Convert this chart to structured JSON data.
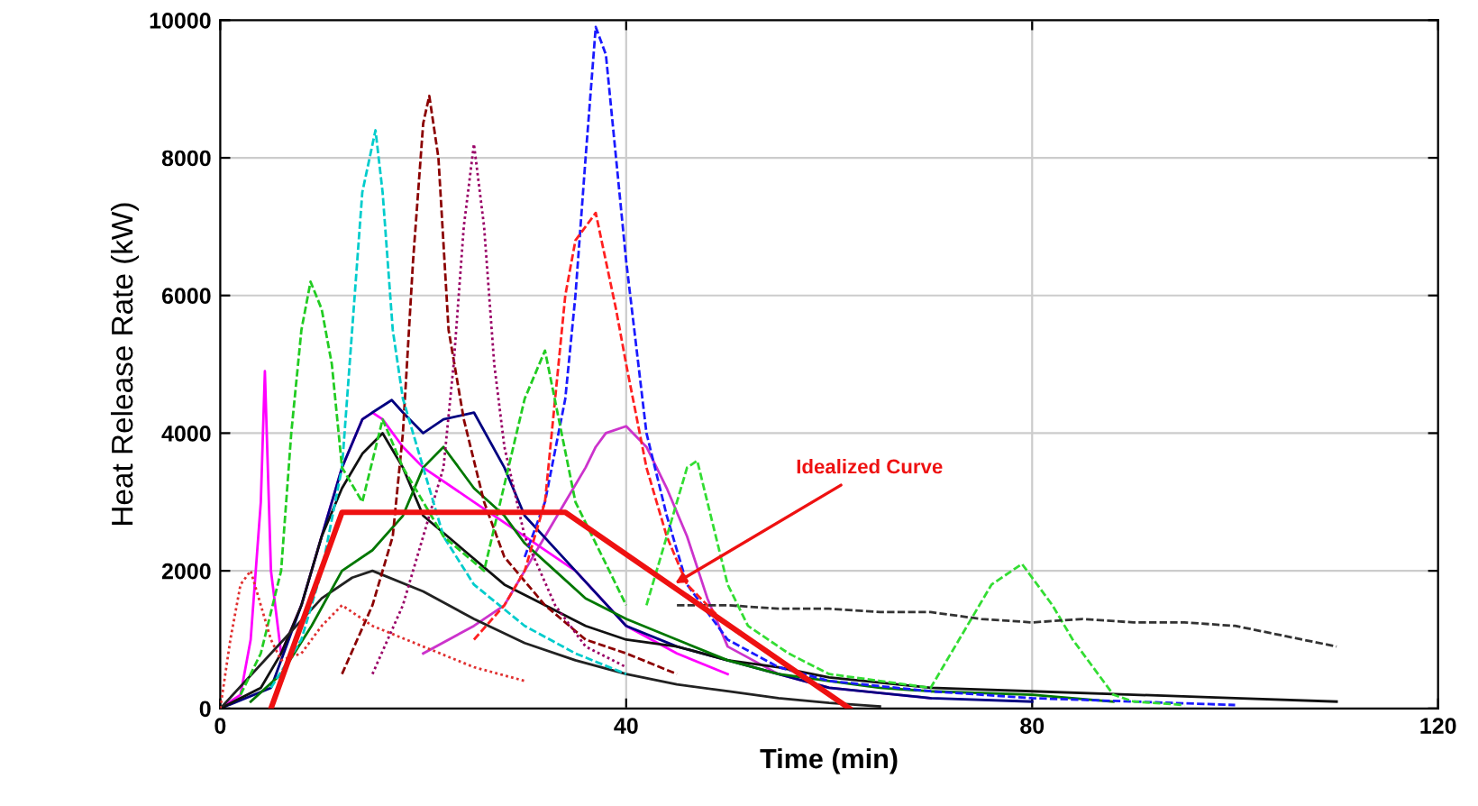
{
  "chart_data": {
    "type": "line",
    "xlabel": "Time (min)",
    "ylabel": "Heat Release Rate (kW)",
    "xlim": [
      0,
      120
    ],
    "xticks": [
      0,
      40,
      80,
      120
    ],
    "ylim": [
      0,
      10000
    ],
    "yticks": [
      0,
      2000,
      4000,
      6000,
      8000,
      10000
    ],
    "grid": true,
    "marker": "none",
    "series": [
      {
        "color": "#1a1aff",
        "line_style": "dashed",
        "x": [
          30,
          32,
          34,
          35,
          36,
          37,
          38,
          39,
          40,
          42,
          44,
          46,
          50,
          55,
          60,
          70,
          80,
          90,
          100
        ],
        "values": [
          2200,
          3000,
          4500,
          6000,
          8000,
          9900,
          9500,
          8000,
          6500,
          4000,
          2800,
          1800,
          1000,
          600,
          400,
          250,
          150,
          100,
          50
        ]
      },
      {
        "color": "#8b0000",
        "line_style": "dashed",
        "x": [
          12,
          15,
          17,
          18,
          19,
          20,
          20.6,
          21.5,
          22.5,
          24,
          26,
          28,
          32,
          36,
          40,
          45
        ],
        "values": [
          500,
          1500,
          2500,
          4000,
          6500,
          8500,
          8900,
          8000,
          5500,
          4200,
          3000,
          2200,
          1500,
          1000,
          800,
          500
        ]
      },
      {
        "color": "#990066",
        "line_style": "dotted",
        "x": [
          15,
          18,
          20,
          22,
          23,
          24,
          25,
          26,
          27,
          28,
          30,
          33,
          36,
          40
        ],
        "values": [
          500,
          1500,
          2500,
          3500,
          5000,
          7000,
          8200,
          7000,
          5000,
          3800,
          2500,
          1500,
          900,
          600
        ]
      },
      {
        "color": "#00cccc",
        "line_style": "dashed",
        "x": [
          5,
          8,
          10,
          12,
          13,
          14,
          15.3,
          16,
          17,
          18,
          20,
          22,
          25,
          30,
          35,
          40
        ],
        "values": [
          300,
          1000,
          2000,
          3500,
          5500,
          7500,
          8400,
          7500,
          5500,
          4500,
          3500,
          2500,
          1800,
          1200,
          800,
          500
        ]
      },
      {
        "color": "#ff2020",
        "line_style": "dashed",
        "x": [
          25,
          28,
          30,
          32,
          33,
          34,
          35,
          36,
          37,
          38,
          39,
          40,
          42,
          44,
          46,
          50,
          55
        ],
        "values": [
          1000,
          1500,
          2000,
          3000,
          4500,
          6000,
          6800,
          7000,
          7200,
          6500,
          5800,
          5000,
          3500,
          2500,
          1800,
          1200,
          700
        ]
      },
      {
        "color": "#22cc22",
        "line_style": "dashed",
        "x": [
          2,
          4,
          6,
          7,
          8,
          8.9,
          10,
          11,
          12,
          14,
          16,
          18,
          22,
          26,
          30,
          32,
          35,
          40
        ],
        "values": [
          200,
          800,
          2000,
          4000,
          5500,
          6200,
          5800,
          5000,
          3500,
          3000,
          4200,
          3500,
          2500,
          2000,
          4500,
          5200,
          3000,
          1500
        ]
      },
      {
        "color": "#33dd33",
        "line_style": "dashed",
        "x": [
          42,
          44,
          46,
          47,
          48,
          50,
          52,
          56,
          60,
          65,
          70,
          72,
          74,
          76,
          78,
          79,
          80,
          82,
          84,
          86,
          88,
          90,
          95
        ],
        "values": [
          1500,
          2500,
          3500,
          3600,
          3000,
          1800,
          1200,
          800,
          500,
          400,
          300,
          800,
          1300,
          1800,
          2000,
          2100,
          1900,
          1500,
          1000,
          600,
          200,
          100,
          50
        ]
      },
      {
        "color": "#ff00ff",
        "line_style": "solid",
        "x": [
          0,
          2,
          3,
          4,
          4.4,
          5,
          6,
          8,
          10,
          12,
          14,
          15,
          16,
          18,
          20,
          25,
          30,
          35,
          40,
          45,
          50
        ],
        "values": [
          0,
          200,
          1000,
          3000,
          4900,
          2000,
          800,
          1500,
          2500,
          3500,
          4200,
          4300,
          4200,
          3800,
          3500,
          3000,
          2500,
          2000,
          1200,
          800,
          500
        ]
      },
      {
        "color": "#cc33cc",
        "line_style": "solid",
        "x": [
          20,
          25,
          28,
          30,
          32,
          34,
          36,
          37,
          38,
          40,
          42,
          44,
          46,
          48,
          50,
          55,
          60,
          70
        ],
        "values": [
          800,
          1200,
          1500,
          2000,
          2500,
          3000,
          3500,
          3800,
          4000,
          4100,
          3800,
          3200,
          2500,
          1600,
          900,
          500,
          300,
          150
        ]
      },
      {
        "color": "#333333",
        "line_style": "dashed",
        "x": [
          45,
          50,
          55,
          60,
          65,
          70,
          75,
          80,
          85,
          90,
          95,
          100,
          105,
          110
        ],
        "values": [
          1500,
          1500,
          1450,
          1450,
          1400,
          1400,
          1300,
          1250,
          1300,
          1250,
          1250,
          1200,
          1050,
          900
        ]
      },
      {
        "color": "#000080",
        "line_style": "solid",
        "x": [
          0,
          5,
          8,
          10,
          12,
          14,
          15,
          16.9,
          18,
          20,
          22,
          25,
          28,
          30,
          35,
          40,
          45,
          50,
          55,
          60,
          70,
          80
        ],
        "values": [
          0,
          300,
          1500,
          2500,
          3500,
          4200,
          4300,
          4480,
          4300,
          4000,
          4200,
          4300,
          3500,
          2800,
          2000,
          1200,
          900,
          700,
          500,
          300,
          150,
          100
        ]
      },
      {
        "color": "#111111",
        "line_style": "solid",
        "x": [
          0,
          4,
          6,
          8,
          10,
          12,
          14,
          16,
          18,
          20,
          24,
          28,
          32,
          36,
          40,
          45,
          50,
          55,
          60,
          70,
          80,
          90,
          100,
          110
        ],
        "values": [
          0,
          300,
          800,
          1500,
          2500,
          3200,
          3700,
          4000,
          3500,
          2800,
          2300,
          1800,
          1500,
          1200,
          1000,
          900,
          700,
          600,
          450,
          300,
          250,
          200,
          150,
          100
        ]
      },
      {
        "color": "#222222",
        "line_style": "solid",
        "x": [
          0,
          5,
          10,
          13,
          15,
          20,
          25,
          30,
          35,
          40,
          45,
          50,
          55,
          60,
          65
        ],
        "values": [
          0,
          800,
          1600,
          1900,
          2000,
          1700,
          1300,
          950,
          700,
          500,
          350,
          250,
          150,
          80,
          30
        ]
      },
      {
        "color": "#e03030",
        "line_style": "dotted",
        "x": [
          0,
          1,
          2,
          3,
          4,
          5,
          6,
          8,
          10,
          12,
          15,
          20,
          25,
          30
        ],
        "values": [
          0,
          1000,
          1800,
          2000,
          1500,
          1000,
          700,
          800,
          1200,
          1500,
          1200,
          900,
          600,
          400
        ]
      },
      {
        "color": "#007700",
        "line_style": "solid",
        "x": [
          3,
          6,
          9,
          12,
          15,
          18,
          20,
          22,
          25,
          28,
          30,
          33,
          36,
          40,
          45,
          50,
          55,
          60,
          65,
          70,
          80,
          88
        ],
        "values": [
          100,
          500,
          1200,
          2000,
          2300,
          2800,
          3500,
          3800,
          3200,
          2800,
          2400,
          2000,
          1600,
          1300,
          1000,
          700,
          500,
          400,
          300,
          250,
          200,
          100
        ]
      },
      {
        "color": "#ee1111",
        "line_style": "solid",
        "x": [
          5,
          12,
          34,
          62
        ],
        "values": [
          0,
          2850,
          2850,
          0
        ]
      }
    ],
    "annotations": [
      {
        "text": "Idealized Curve",
        "x": 44.4,
        "y": 1780
      }
    ]
  }
}
